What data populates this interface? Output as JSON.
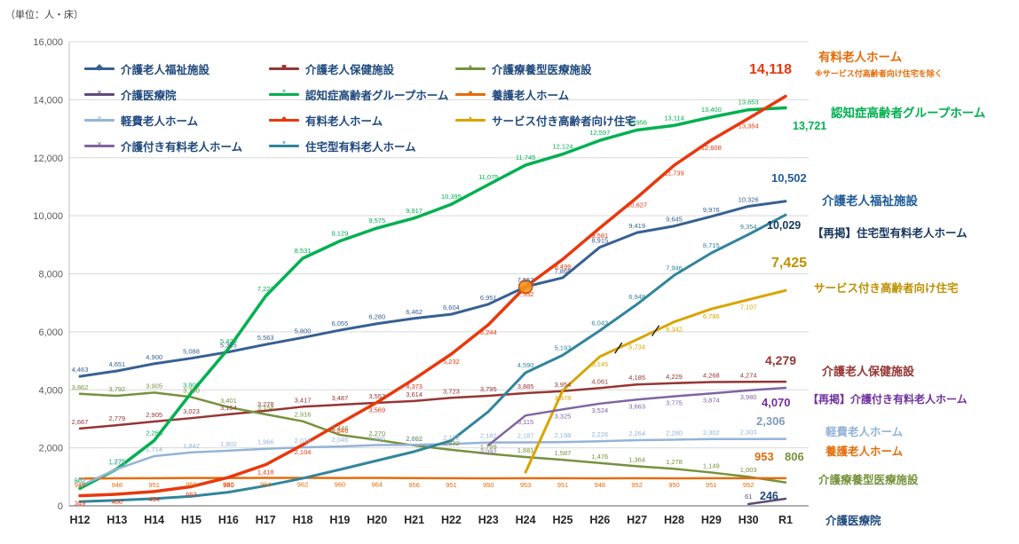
{
  "unit_label": "（単位：人・床）",
  "chart_data": {
    "type": "line",
    "categories": [
      "H12",
      "H13",
      "H14",
      "H15",
      "H16",
      "H17",
      "H18",
      "H19",
      "H20",
      "H21",
      "H22",
      "H23",
      "H24",
      "H25",
      "H26",
      "H27",
      "H28",
      "H29",
      "H30",
      "R1"
    ],
    "ylim": [
      0,
      16000
    ],
    "ytick_step": 2000,
    "grid": "horizontal-only",
    "legend_position": "top-left-inside",
    "series": [
      {
        "name": "介護老人福祉施設",
        "color": "#376092",
        "width": 3,
        "marker": "◆",
        "label_dy": -5,
        "labels_from": 0,
        "values": [
          4463,
          4651,
          4900,
          5088,
          5305,
          5563,
          5800,
          6055,
          6280,
          6462,
          6604,
          6951,
          7552,
          7865,
          8915,
          9419,
          9645,
          9976,
          10326,
          10502
        ]
      },
      {
        "name": "介護老人保健施設",
        "color": "#943634",
        "width": 2.5,
        "marker": "■",
        "label_dy": -5,
        "labels_from": 0,
        "values": [
          2667,
          2779,
          2905,
          3023,
          3154,
          3278,
          3417,
          3487,
          3552,
          3614,
          3723,
          3795,
          3885,
          3954,
          4061,
          4185,
          4229,
          4268,
          4274,
          4279
        ]
      },
      {
        "name": "介護療養型医療施設",
        "color": "#76923C",
        "width": 2.5,
        "marker": "▲",
        "label_dy": -5,
        "labels_from": 0,
        "values": [
          3862,
          3792,
          3905,
          3750,
          3401,
          3154,
          2916,
          2446,
          2270,
          2082,
          1932,
          1799,
          1681,
          1587,
          1476,
          1364,
          1278,
          1149,
          1003,
          806
        ]
      },
      {
        "name": "介護医療院",
        "color": "#604A7B",
        "width": 2.5,
        "marker": "×",
        "label_dy": -6,
        "labels_from": 18,
        "values": [
          null,
          null,
          null,
          null,
          null,
          null,
          null,
          null,
          null,
          null,
          null,
          null,
          null,
          null,
          null,
          null,
          null,
          null,
          61,
          246
        ]
      },
      {
        "name": "認知症高齢者グループホーム",
        "color": "#00B050",
        "width": 3.5,
        "marker": "*",
        "label_dy": -6,
        "labels_from": 0,
        "values": [
          602,
          1275,
          2250,
          3900,
          5420,
          7227,
          8531,
          9129,
          9575,
          9917,
          10395,
          11075,
          11745,
          12124,
          12597,
          12956,
          13114,
          13400,
          13653,
          13721
        ]
      },
      {
        "name": "養護老人ホーム",
        "color": "#E46C0A",
        "width": 2.5,
        "marker": "●",
        "label_dy": 10,
        "labels_from": 0,
        "values": [
          942,
          948,
          951,
          959,
          960,
          964,
          962,
          960,
          964,
          956,
          951,
          950,
          953,
          951,
          948,
          952,
          950,
          951,
          952,
          953
        ]
      },
      {
        "name": "軽費老人ホーム",
        "color": "#95B3D7",
        "width": 2.5,
        "marker": "+",
        "label_dy": -5,
        "labels_from": 0,
        "values": [
          675,
          1273,
          1714,
          1842,
          1902,
          1966,
          2016,
          2046,
          2095,
          2102,
          2132,
          2182,
          2187,
          2198,
          2226,
          2264,
          2280,
          2302,
          2303,
          2306
        ]
      },
      {
        "name": "有料老人ホーム",
        "color": "#E8380D",
        "width": 3.5,
        "marker": "●",
        "label_dy": 11,
        "labels_from": 0,
        "values": [
          349,
          400,
          494,
          663,
          980,
          1418,
          2104,
          2846,
          3569,
          4373,
          5232,
          6244,
          7552,
          8499,
          9581,
          10627,
          11739,
          12608,
          13354,
          14118
        ]
      },
      {
        "name": "サービス付き高齢者向け住宅",
        "color": "#D9A400",
        "width": 3,
        "marker": "▲",
        "label_dy": 11,
        "labels_from": 13,
        "values": [
          null,
          null,
          null,
          null,
          null,
          null,
          null,
          null,
          null,
          null,
          null,
          null,
          1160,
          3978,
          5145,
          5734,
          6342,
          6786,
          7107,
          7425
        ]
      },
      {
        "name": "介護付き有料老人ホーム",
        "color": "#8064A2",
        "width": 2.5,
        "marker": "×",
        "label_dy": 10,
        "labels_from": 11,
        "values": [
          null,
          null,
          null,
          null,
          null,
          null,
          null,
          null,
          null,
          null,
          null,
          2092,
          3115,
          3325,
          3524,
          3663,
          3775,
          3874,
          3980,
          4070
        ]
      },
      {
        "name": "住宅型有料老人ホーム",
        "color": "#31859C",
        "width": 3,
        "marker": "*",
        "label_dy": -6,
        "labels_from": 12,
        "values": [
          144,
          190,
          248,
          330,
          470,
          690,
          950,
          1250,
          1560,
          1870,
          2250,
          3250,
          4590,
          5193,
          6043,
          6948,
          7946,
          8715,
          9354,
          10029
        ]
      }
    ],
    "highlight": {
      "category": "H24",
      "value": 7552,
      "color": "#F4901E"
    },
    "break_marks": [
      {
        "series_index": 8,
        "after_index": 14
      },
      {
        "series_index": 8,
        "after_index": 15
      }
    ],
    "legend_rows": [
      [
        0,
        1,
        2
      ],
      [
        3,
        4,
        5
      ],
      [
        6,
        7,
        8
      ],
      [
        9,
        10
      ]
    ]
  },
  "right_labels": [
    {
      "label": "有料老人ホーム",
      "note": "※サービス付高齢者向け住宅を除く",
      "value": "14,118",
      "label_color": "#E46C0A",
      "value_color": "#E8380D"
    },
    {
      "label": "認知症高齢者グループホーム",
      "value": "13,721",
      "label_color": "#00B050",
      "value_color": "#00B050"
    },
    {
      "label": "介護老人福祉施設",
      "value": "10,502",
      "label_color": "#1F5C99",
      "value_color": "#1F5C99"
    },
    {
      "label": "【再掲】住宅型有料老人ホーム",
      "value": "10,029",
      "label_color": "#17375E",
      "value_color": "#17375E"
    },
    {
      "label": "サービス付き高齢者向け住宅",
      "value": "7,425",
      "label_color": "#BF9000",
      "value_color": "#BF9000"
    },
    {
      "label": "介護老人保健施設",
      "value": "4,279",
      "label_color": "#943634",
      "value_color": "#943634"
    },
    {
      "label": "【再掲】介護付き有料老人ホーム",
      "value": "4,070",
      "label_color": "#7030A0",
      "value_color": "#7030A0"
    },
    {
      "label": "軽費老人ホーム",
      "value": "2,306",
      "label_color": "#95B3D7",
      "value_color": "#7F9DB9"
    },
    {
      "label": "養護老人ホーム",
      "value": "953",
      "label_color": "#E46C0A",
      "value_color": "#E46C0A"
    },
    {
      "label": "介護療養型医療施設",
      "value": "806",
      "label_color": "#76923C",
      "value_color": "#76923C"
    },
    {
      "label": "介護医療院",
      "value": "246",
      "label_color": "#1F497D",
      "value_color": "#1F497D"
    }
  ]
}
